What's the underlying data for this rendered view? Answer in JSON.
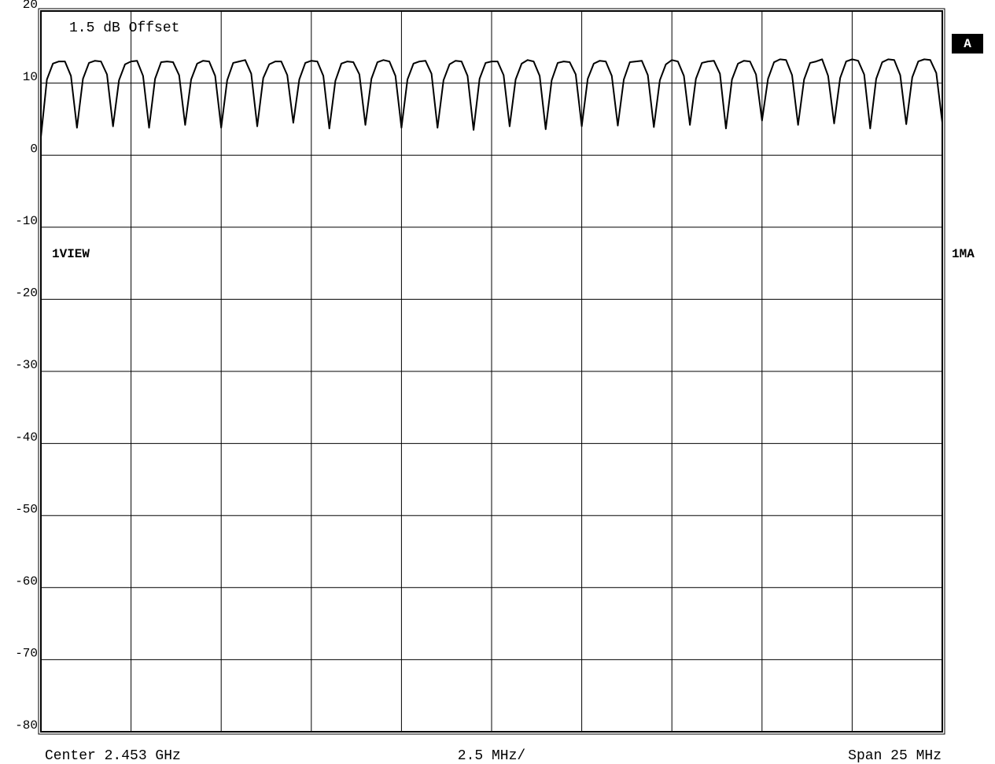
{
  "chart_data": {
    "type": "line",
    "annotations": {
      "offset": "1.5 dB Offset",
      "view": "1VIEW",
      "trace_mode": "1MA",
      "trace_label": "A"
    },
    "footer": {
      "center": "Center 2.453 GHz",
      "scale": "2.5 MHz/",
      "span": "Span 25 MHz"
    },
    "color": "#000000",
    "grid": true,
    "ylim": [
      -80,
      20
    ],
    "yticks": [
      -80,
      -70,
      -60,
      -50,
      -40,
      -30,
      -20,
      -10,
      0,
      10,
      20
    ],
    "categories": [
      null,
      null,
      null,
      null,
      null,
      null,
      null,
      null,
      null,
      null,
      null,
      null,
      null,
      null,
      null,
      null,
      null,
      null,
      null,
      null,
      null,
      null,
      null,
      null,
      null,
      null,
      null,
      null,
      null,
      null,
      null,
      null,
      null,
      null,
      null,
      null,
      null,
      null,
      null,
      null,
      null,
      null,
      null,
      null,
      null,
      null,
      null,
      null,
      null,
      null,
      null,
      null,
      null,
      null,
      null,
      null,
      null,
      null,
      null,
      null,
      null,
      null,
      null,
      null,
      null,
      null,
      null,
      null,
      null,
      null,
      null,
      null,
      null,
      null,
      null,
      null,
      null,
      null,
      null,
      null,
      null,
      null,
      null,
      null,
      null,
      null,
      null,
      null,
      null,
      null,
      null,
      null,
      null,
      null,
      null,
      null,
      null,
      null,
      null,
      null,
      null,
      null,
      null,
      null,
      null,
      null,
      null,
      null,
      null,
      null,
      null,
      null,
      null,
      null,
      null,
      null,
      null,
      null,
      null,
      null,
      null,
      null,
      null,
      null,
      null,
      null,
      null,
      null,
      null,
      null,
      null,
      null,
      null,
      null,
      null,
      null,
      null,
      null,
      null,
      null,
      null,
      null,
      null,
      null,
      null,
      null,
      null,
      null,
      null,
      null,
      null
    ],
    "values": [
      2.5,
      10.5,
      12.7,
      13,
      13,
      11,
      3.8,
      10.6,
      12.8,
      13.1,
      13,
      11.2,
      4,
      10.4,
      12.6,
      13,
      13.1,
      11,
      3.8,
      10.6,
      12.9,
      13,
      12.9,
      11.1,
      4.2,
      10.5,
      12.7,
      13.1,
      13,
      11,
      3.8,
      10.4,
      12.8,
      13,
      13.2,
      11.3,
      4,
      10.7,
      12.6,
      13,
      13,
      11.1,
      4.5,
      10.5,
      12.8,
      13.1,
      13,
      11,
      3.7,
      10.3,
      12.7,
      13,
      12.9,
      11.2,
      4.2,
      10.6,
      12.9,
      13.2,
      13,
      11,
      3.8,
      10.5,
      12.7,
      13,
      13.1,
      11.3,
      3.8,
      10.4,
      12.6,
      13.1,
      13,
      11,
      3.5,
      10.6,
      12.8,
      13,
      13,
      11.1,
      4,
      10.5,
      12.7,
      13.2,
      13,
      11,
      3.6,
      10.4,
      12.8,
      13,
      12.9,
      11.2,
      4,
      10.6,
      12.7,
      13.1,
      13,
      11,
      4.1,
      10.5,
      12.9,
      13,
      13.1,
      11.1,
      3.9,
      10.4,
      12.6,
      13.2,
      13,
      11,
      4.2,
      10.6,
      12.8,
      13,
      13.1,
      11.3,
      3.7,
      10.5,
      12.7,
      13.1,
      13,
      11.2,
      4.8,
      10.6,
      12.9,
      13.3,
      13.2,
      11.1,
      4.2,
      10.5,
      12.8,
      13,
      13.3,
      11,
      4.4,
      10.7,
      13,
      13.3,
      13.1,
      11.2,
      3.7,
      10.6,
      12.9,
      13.3,
      13.2,
      11.1,
      4.3,
      10.8,
      13,
      13.3,
      13.2,
      11.4,
      4.5
    ]
  }
}
